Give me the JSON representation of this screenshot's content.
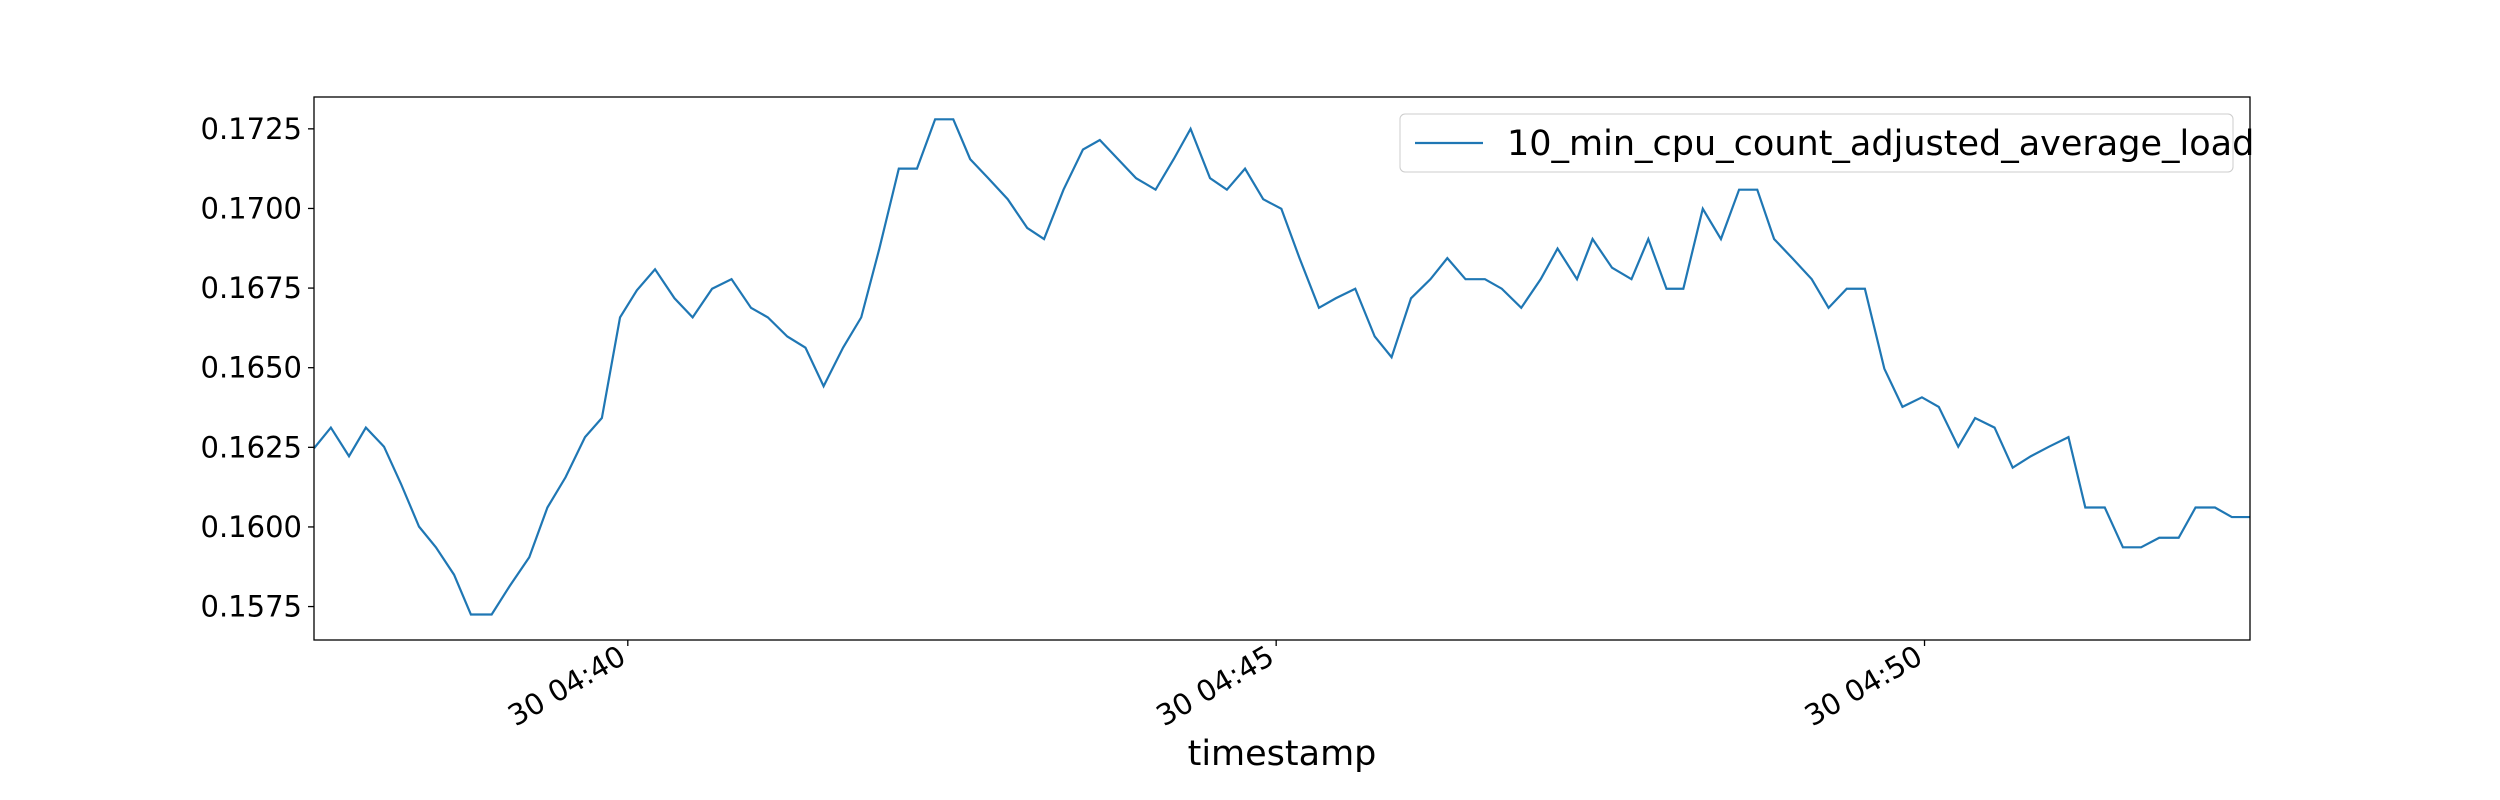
{
  "chart_data": {
    "type": "line",
    "xlabel": "timestamp",
    "x": [
      37.58,
      37.71,
      37.85,
      37.98,
      38.12,
      38.25,
      38.39,
      38.52,
      38.66,
      38.79,
      38.95,
      39.09,
      39.24,
      39.38,
      39.52,
      39.67,
      39.8,
      39.94,
      40.07,
      40.21,
      40.36,
      40.5,
      40.65,
      40.8,
      40.95,
      41.08,
      41.23,
      41.37,
      41.51,
      41.66,
      41.8,
      41.94,
      42.09,
      42.23,
      42.37,
      42.51,
      42.64,
      42.78,
      42.93,
      43.08,
      43.21,
      43.36,
      43.51,
      43.64,
      43.78,
      43.92,
      44.07,
      44.21,
      44.34,
      44.49,
      44.62,
      44.76,
      44.9,
      45.04,
      45.18,
      45.33,
      45.46,
      45.61,
      45.76,
      45.89,
      46.04,
      46.19,
      46.32,
      46.46,
      46.61,
      46.74,
      46.89,
      47.04,
      47.17,
      47.32,
      47.44,
      47.59,
      47.74,
      47.87,
      48.01,
      48.14,
      48.29,
      48.43,
      48.57,
      48.71,
      48.84,
      48.98,
      49.13,
      49.26,
      49.4,
      49.54,
      49.69,
      49.83,
      49.98,
      50.11,
      50.26,
      50.39,
      50.54,
      50.68,
      50.82,
      50.96,
      51.11,
      51.24,
      51.39,
      51.53,
      51.67,
      51.81,
      51.96,
      52.09,
      52.24,
      52.37,
      52.51
    ],
    "series": [
      {
        "name": "10_min_cpu_count_adjusted_average_load",
        "color": "#1f77b4",
        "values": [
          0.16247,
          0.16312,
          0.16222,
          0.16312,
          0.16252,
          0.16136,
          0.16001,
          0.15936,
          0.1585,
          0.15725,
          0.15725,
          0.15815,
          0.15905,
          0.16061,
          0.16156,
          0.16282,
          0.16342,
          0.16658,
          0.16743,
          0.16809,
          0.16718,
          0.16658,
          0.16748,
          0.16778,
          0.16688,
          0.16658,
          0.16598,
          0.16563,
          0.16442,
          0.16563,
          0.16658,
          0.16874,
          0.17125,
          0.17125,
          0.1728,
          0.1728,
          0.17155,
          0.17095,
          0.17029,
          0.16939,
          0.16904,
          0.17059,
          0.17185,
          0.17215,
          0.17155,
          0.17095,
          0.17059,
          0.17155,
          0.1725,
          0.17095,
          0.17059,
          0.17125,
          0.17029,
          0.16999,
          0.16844,
          0.16688,
          0.16718,
          0.16748,
          0.16598,
          0.16533,
          0.16718,
          0.16778,
          0.16844,
          0.16778,
          0.16778,
          0.16748,
          0.16688,
          0.16778,
          0.16874,
          0.16778,
          0.16904,
          0.16814,
          0.16778,
          0.16904,
          0.16748,
          0.16748,
          0.16999,
          0.16904,
          0.17059,
          0.17059,
          0.16904,
          0.16844,
          0.16778,
          0.16688,
          0.16748,
          0.16748,
          0.16497,
          0.16377,
          0.16407,
          0.16377,
          0.16252,
          0.16342,
          0.16312,
          0.16186,
          0.16222,
          0.16252,
          0.16282,
          0.16061,
          0.16061,
          0.15936,
          0.15936,
          0.15966,
          0.15966,
          0.16061,
          0.16061,
          0.16031,
          0.16031
        ]
      }
    ],
    "xlim": [
      37.58,
      52.51
    ],
    "xticks": [
      {
        "value": 40,
        "label": "30 04:40"
      },
      {
        "value": 45,
        "label": "30 04:45"
      },
      {
        "value": 50,
        "label": "30 04:50"
      }
    ],
    "ylim": [
      0.15645,
      0.1735
    ],
    "yticks": [
      0.1575,
      {
        "value": 0.16,
        "label": "0.1600"
      },
      0.1625,
      {
        "value": 0.165,
        "label": "0.1650"
      },
      0.1675,
      {
        "value": 0.17,
        "label": "0.1700"
      },
      0.1725
    ],
    "legend": "upper right",
    "grid": false
  }
}
